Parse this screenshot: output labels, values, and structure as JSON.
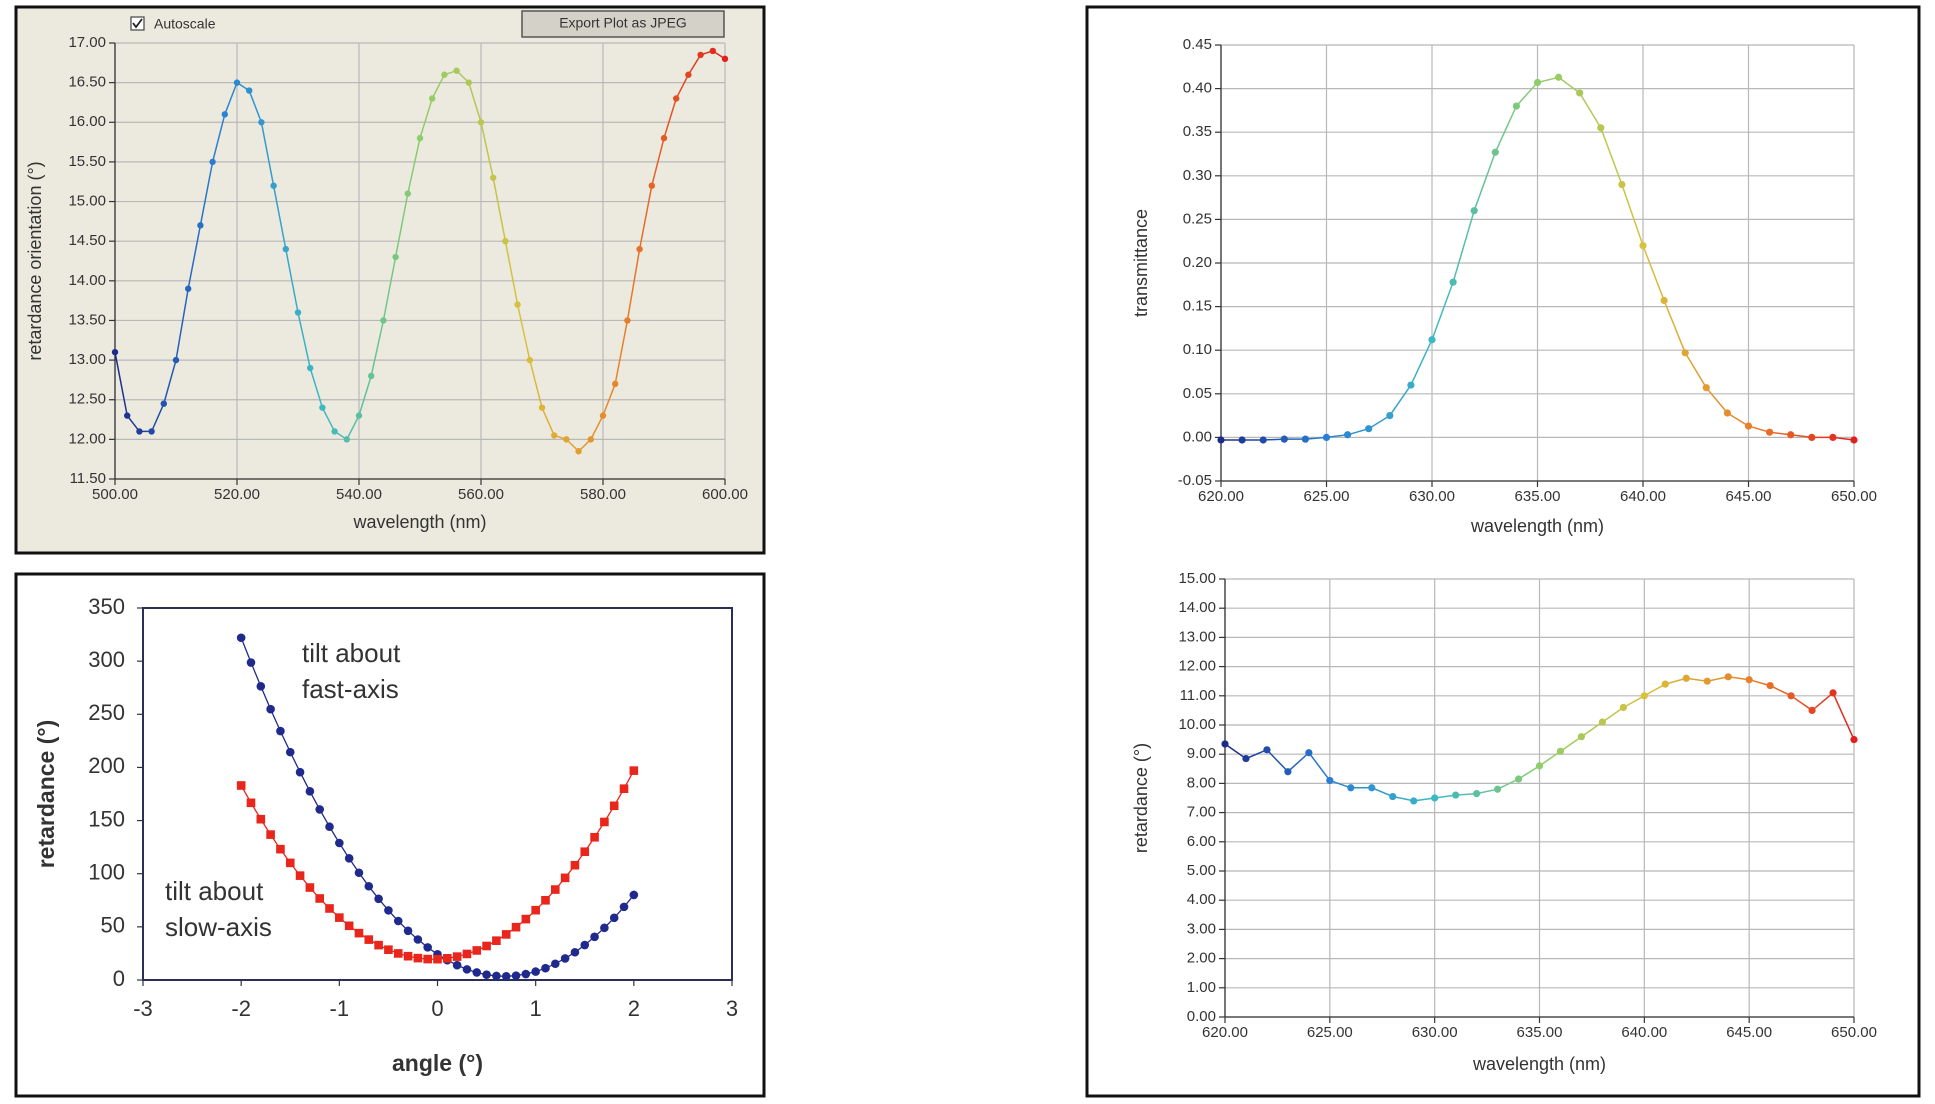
{
  "chart_data": [
    {
      "type": "line",
      "checkbox_label": "Autoscale",
      "button_label": "Export Plot as JPEG",
      "xlabel": "wavelength (nm)",
      "ylabel": "retardance orientation (°)",
      "grid": true,
      "xlim": [
        500,
        600
      ],
      "ylim": [
        11.5,
        17
      ],
      "xticks": [
        {
          "value": 500,
          "label": "500.00"
        },
        {
          "value": 520,
          "label": "520.00"
        },
        {
          "value": 540,
          "label": "540.00"
        },
        {
          "value": 560,
          "label": "560.00"
        },
        {
          "value": 580,
          "label": "580.00"
        },
        {
          "value": 600,
          "label": "600.00"
        }
      ],
      "yticks": [
        {
          "value": 11.5,
          "label": "11.50"
        },
        {
          "value": 12,
          "label": "12.00"
        },
        {
          "value": 12.5,
          "label": "12.50"
        },
        {
          "value": 13,
          "label": "13.00"
        },
        {
          "value": 13.5,
          "label": "13.50"
        },
        {
          "value": 14,
          "label": "14.00"
        },
        {
          "value": 14.5,
          "label": "14.50"
        },
        {
          "value": 15,
          "label": "15.00"
        },
        {
          "value": 15.5,
          "label": "15.50"
        },
        {
          "value": 16,
          "label": "16.00"
        },
        {
          "value": 16.5,
          "label": "16.50"
        },
        {
          "value": 17,
          "label": "17.00"
        }
      ],
      "x": [
        500,
        502,
        504,
        506,
        508,
        510,
        512,
        514,
        516,
        518,
        520,
        522,
        524,
        526,
        528,
        530,
        532,
        534,
        536,
        538,
        540,
        542,
        544,
        546,
        548,
        550,
        552,
        554,
        556,
        558,
        560,
        562,
        564,
        566,
        568,
        570,
        572,
        574,
        576,
        578,
        580,
        582,
        584,
        586,
        588,
        590,
        592,
        594,
        596,
        598,
        600
      ],
      "series": [
        {
          "marker": "circle",
          "color_scale": [
            "#1c2a8a",
            "#2a7fd4",
            "#3bb8c4",
            "#8ccd6c",
            "#d8c13c",
            "#e8802a",
            "#e0201c"
          ],
          "values": [
            13.1,
            12.3,
            12.1,
            12.1,
            12.45,
            13.0,
            13.9,
            14.7,
            15.5,
            16.1,
            16.5,
            16.4,
            16.0,
            15.2,
            14.4,
            13.6,
            12.9,
            12.4,
            12.1,
            12.0,
            12.3,
            12.8,
            13.5,
            14.3,
            15.1,
            15.8,
            16.3,
            16.6,
            16.65,
            16.5,
            16.0,
            15.3,
            14.5,
            13.7,
            13.0,
            12.4,
            12.05,
            12.0,
            11.85,
            12.0,
            12.3,
            12.7,
            13.5,
            14.4,
            15.2,
            15.8,
            16.3,
            16.6,
            16.85,
            16.9,
            16.8
          ]
        }
      ]
    },
    {
      "type": "line",
      "xlabel": "angle (°)",
      "ylabel": "retardance (°)",
      "grid": false,
      "xlim": [
        -3,
        3
      ],
      "ylim": [
        0,
        350
      ],
      "xticks": [
        -3,
        -2,
        -1,
        0,
        1,
        2,
        3
      ],
      "yticks": [
        0,
        50,
        100,
        150,
        200,
        250,
        300,
        350
      ],
      "x": [
        -2,
        -1.9,
        -1.8,
        -1.7,
        -1.6,
        -1.5,
        -1.4,
        -1.3,
        -1.2,
        -1.1,
        -1,
        -0.9,
        -0.8,
        -0.7,
        -0.6,
        -0.5,
        -0.4,
        -0.3,
        -0.2,
        -0.1,
        0,
        0.1,
        0.2,
        0.3,
        0.4,
        0.5,
        0.6,
        0.7,
        0.8,
        0.9,
        1,
        1.1,
        1.2,
        1.3,
        1.4,
        1.5,
        1.6,
        1.7,
        1.8,
        1.9,
        2
      ],
      "annotations": [
        [
          "tilt about",
          "fast-axis"
        ],
        [
          "tilt about",
          "slow-axis"
        ]
      ],
      "series": [
        {
          "marker": "circle",
          "color": "#1f2a8c",
          "values": [
            322,
            298.7,
            276.3,
            254.8,
            234.2,
            214.4,
            195.5,
            177.5,
            160.5,
            144.2,
            128.9,
            114.5,
            100.9,
            88.2,
            76.4,
            65.5,
            55.5,
            46.3,
            38.1,
            30.7,
            24.2,
            18.6,
            13.9,
            10.0,
            7.1,
            5.0,
            3.8,
            3.5,
            4.1,
            5.6,
            7.9,
            11.1,
            15.3,
            20.3,
            26.1,
            32.9,
            40.6,
            49.1,
            58.5,
            68.8,
            80
          ]
        },
        {
          "marker": "square",
          "color": "#e8261c",
          "values": [
            183,
            166.7,
            151.3,
            136.8,
            123.1,
            110.2,
            98.2,
            87.0,
            76.7,
            67.3,
            58.7,
            51.0,
            44.1,
            38.0,
            32.8,
            28.5,
            25.0,
            22.4,
            20.6,
            19.7,
            19.6,
            20.4,
            22.0,
            24.5,
            27.8,
            32.0,
            37.0,
            42.9,
            49.7,
            57.3,
            65.7,
            75.0,
            85.1,
            96.1,
            108.0,
            120.7,
            134.3,
            148.7,
            163.9,
            180.0,
            197
          ]
        }
      ]
    },
    {
      "type": "line",
      "xlabel": "wavelength (nm)",
      "ylabel": "transmittance",
      "grid": true,
      "xlim": [
        620,
        650
      ],
      "ylim": [
        -0.05,
        0.45
      ],
      "xticks": [
        {
          "value": 620,
          "label": "620.00"
        },
        {
          "value": 625,
          "label": "625.00"
        },
        {
          "value": 630,
          "label": "630.00"
        },
        {
          "value": 635,
          "label": "635.00"
        },
        {
          "value": 640,
          "label": "640.00"
        },
        {
          "value": 645,
          "label": "645.00"
        },
        {
          "value": 650,
          "label": "650.00"
        }
      ],
      "yticks": [
        -0.05,
        {
          "value": 0,
          "label": "0.00"
        },
        0.05,
        {
          "value": 0.1,
          "label": "0.10"
        },
        0.15,
        {
          "value": 0.2,
          "label": "0.20"
        },
        0.25,
        {
          "value": 0.3,
          "label": "0.30"
        },
        0.35,
        {
          "value": 0.4,
          "label": "0.40"
        },
        0.45
      ],
      "x": [
        620,
        621,
        622,
        623,
        624,
        625,
        626,
        627,
        628,
        629,
        630,
        631,
        632,
        633,
        634,
        635,
        636,
        637,
        638,
        639,
        640,
        641,
        642,
        643,
        644,
        645,
        646,
        647,
        648,
        649,
        650
      ],
      "series": [
        {
          "marker": "circle",
          "color_scale": [
            "#1c2a8a",
            "#2a7fd4",
            "#3bb8c4",
            "#8ccd6c",
            "#d8c13c",
            "#e8802a",
            "#e0201c"
          ],
          "values": [
            -0.003,
            -0.003,
            -0.003,
            -0.002,
            -0.002,
            0.0,
            0.003,
            0.01,
            0.025,
            0.06,
            0.112,
            0.178,
            0.26,
            0.327,
            0.38,
            0.407,
            0.413,
            0.395,
            0.355,
            0.29,
            0.22,
            0.157,
            0.097,
            0.057,
            0.028,
            0.013,
            0.006,
            0.003,
            0.0,
            0.0,
            -0.003
          ]
        }
      ]
    },
    {
      "type": "line",
      "xlabel": "wavelength (nm)",
      "ylabel": "retardance (°)",
      "grid": true,
      "xlim": [
        620,
        650
      ],
      "ylim": [
        0,
        15
      ],
      "xticks": [
        {
          "value": 620,
          "label": "620.00"
        },
        {
          "value": 625,
          "label": "625.00"
        },
        {
          "value": 630,
          "label": "630.00"
        },
        {
          "value": 635,
          "label": "635.00"
        },
        {
          "value": 640,
          "label": "640.00"
        },
        {
          "value": 645,
          "label": "645.00"
        },
        {
          "value": 650,
          "label": "650.00"
        }
      ],
      "yticks": [
        {
          "value": 0,
          "label": "0.00"
        },
        {
          "value": 1,
          "label": "1.00"
        },
        {
          "value": 2,
          "label": "2.00"
        },
        {
          "value": 3,
          "label": "3.00"
        },
        {
          "value": 4,
          "label": "4.00"
        },
        {
          "value": 5,
          "label": "5.00"
        },
        {
          "value": 6,
          "label": "6.00"
        },
        {
          "value": 7,
          "label": "7.00"
        },
        {
          "value": 8,
          "label": "8.00"
        },
        {
          "value": 9,
          "label": "9.00"
        },
        {
          "value": 10,
          "label": "10.00"
        },
        {
          "value": 11,
          "label": "11.00"
        },
        {
          "value": 12,
          "label": "12.00"
        },
        {
          "value": 13,
          "label": "13.00"
        },
        {
          "value": 14,
          "label": "14.00"
        },
        {
          "value": 15,
          "label": "15.00"
        }
      ],
      "x": [
        620,
        621,
        622,
        623,
        624,
        625,
        626,
        627,
        628,
        629,
        630,
        631,
        632,
        633,
        634,
        635,
        636,
        637,
        638,
        639,
        640,
        641,
        642,
        643,
        644,
        645,
        646,
        647,
        648,
        649,
        650
      ],
      "series": [
        {
          "marker": "circle",
          "color_scale": [
            "#1c2a8a",
            "#2a7fd4",
            "#3bb8c4",
            "#8ccd6c",
            "#d8c13c",
            "#e8802a",
            "#e0201c"
          ],
          "values": [
            9.35,
            8.85,
            9.15,
            8.4,
            9.05,
            8.1,
            7.85,
            7.85,
            7.55,
            7.4,
            7.5,
            7.6,
            7.65,
            7.8,
            8.15,
            8.6,
            9.1,
            9.6,
            10.1,
            10.6,
            11.0,
            11.4,
            11.6,
            11.5,
            11.65,
            11.55,
            11.35,
            11.0,
            10.5,
            11.1,
            9.5
          ]
        }
      ]
    }
  ]
}
